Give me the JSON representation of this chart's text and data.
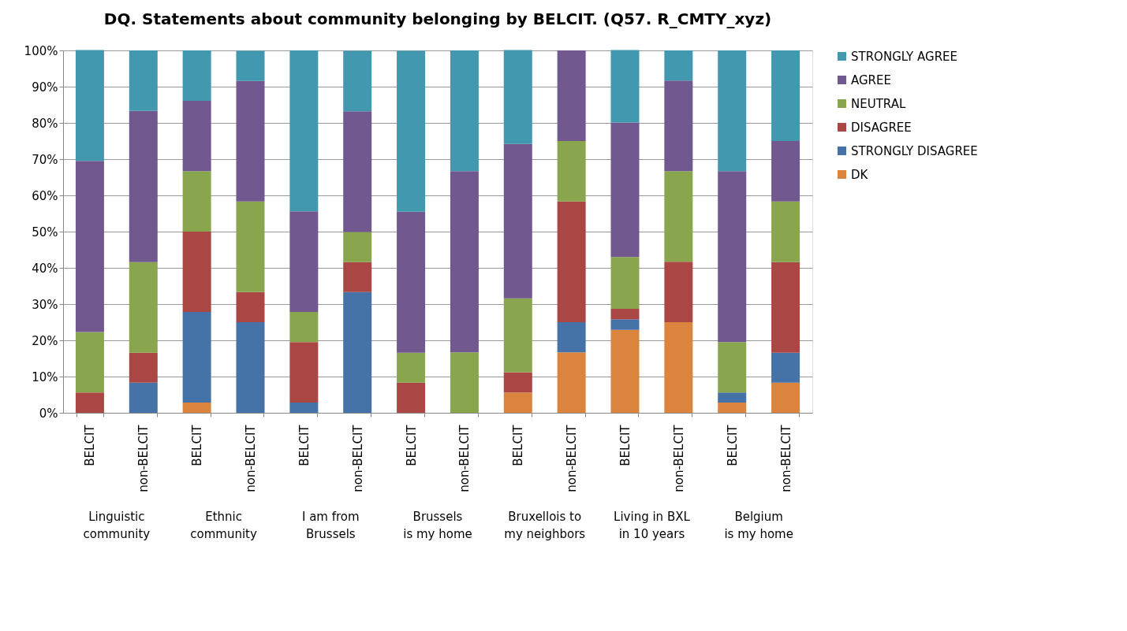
{
  "chart_data": {
    "type": "bar",
    "title": "DQ. Statements about community belonging by BELCIT. (Q57. R_CMTY_xyz)",
    "categories": [
      "BELCIT",
      "non-BELCIT",
      "BELCIT",
      "non-BELCIT",
      "BELCIT",
      "non-BELCIT",
      "BELCIT",
      "non-BELCIT",
      "BELCIT",
      "non-BELCIT",
      "BELCIT",
      "non-BELCIT",
      "BELCIT",
      "non-BELCIT"
    ],
    "annotations": [
      "Linguistic community",
      "Ethnic community",
      "I am from Brussels",
      "Brussels is my home",
      "Bruxellois to my neighbors",
      "Living in BXL in 10 years",
      "Belgium is my home"
    ],
    "stacked": true,
    "series": [
      {
        "name": "DK",
        "color": "#db843d",
        "values": [
          0,
          0,
          2.8,
          0,
          0,
          0,
          0,
          0,
          5.6,
          16.7,
          22.9,
          25,
          2.8,
          8.3
        ]
      },
      {
        "name": "STRONGLY DISAGREE",
        "color": "#4572a7",
        "values": [
          0,
          8.3,
          25,
          25,
          2.8,
          33.3,
          0,
          0,
          0,
          8.3,
          2.9,
          0,
          2.8,
          8.3
        ]
      },
      {
        "name": "DISAGREE",
        "color": "#aa4643",
        "values": [
          5.6,
          8.3,
          22.2,
          8.3,
          16.7,
          8.3,
          8.3,
          0,
          5.6,
          33.3,
          2.9,
          16.7,
          0,
          25
        ]
      },
      {
        "name": "NEUTRAL",
        "color": "#89a54e",
        "values": [
          16.7,
          25,
          16.7,
          25,
          8.3,
          8.3,
          8.3,
          16.7,
          20.4,
          16.7,
          14.3,
          25,
          13.9,
          16.7
        ]
      },
      {
        "name": "AGREE",
        "color": "#71588f",
        "values": [
          47.2,
          41.7,
          19.4,
          33.3,
          27.8,
          33.3,
          38.9,
          50,
          42.6,
          25,
          37.1,
          25,
          47.2,
          16.7
        ]
      },
      {
        "name": "STRONGLY AGREE",
        "color": "#4198af",
        "values": [
          30.6,
          16.7,
          13.9,
          8.3,
          44.4,
          16.7,
          44.4,
          33.3,
          25.9,
          0,
          20,
          8.3,
          33.3,
          25
        ]
      }
    ],
    "ylim": [
      0,
      100
    ],
    "yticks": [
      {
        "value": 0,
        "label": "0%"
      },
      {
        "value": 10,
        "label": "10%"
      },
      {
        "value": 20,
        "label": "20%"
      },
      {
        "value": 30,
        "label": "30%"
      },
      {
        "value": 40,
        "label": "40%"
      },
      {
        "value": 50,
        "label": "50%"
      },
      {
        "value": 60,
        "label": "60%"
      },
      {
        "value": 70,
        "label": "70%"
      },
      {
        "value": 80,
        "label": "80%"
      },
      {
        "value": 90,
        "label": "90%"
      },
      {
        "value": 100,
        "label": "100%"
      }
    ],
    "grid": "y",
    "legend": "right"
  }
}
